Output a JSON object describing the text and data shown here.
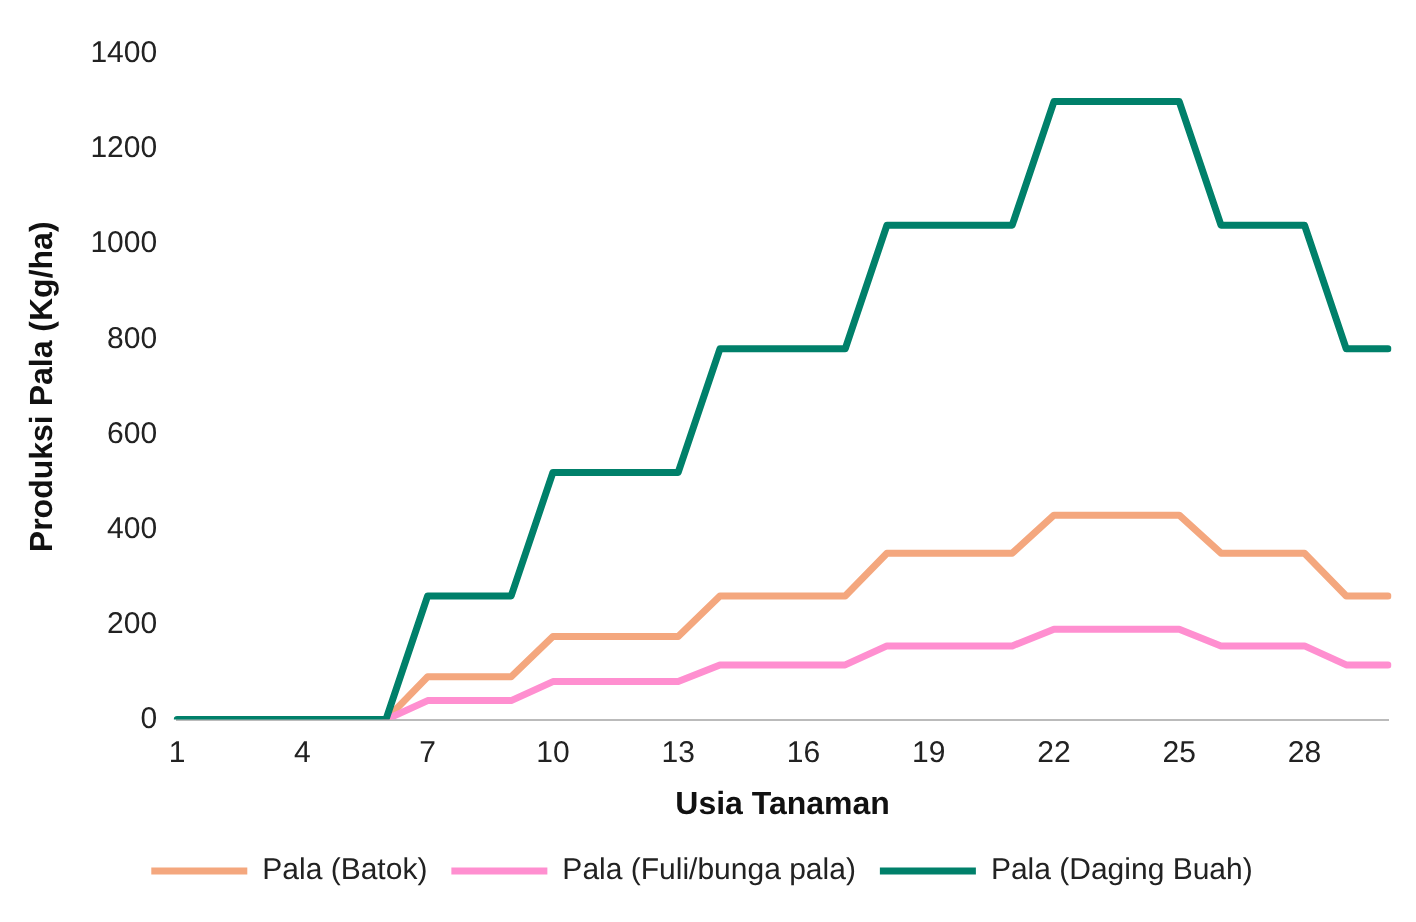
{
  "chart_data": {
    "type": "line",
    "xlabel": "Usia Tanaman",
    "ylabel": "Produksi Pala (Kg/ha)",
    "categories": [
      "1",
      null,
      null,
      "4",
      null,
      null,
      "7",
      null,
      null,
      "10",
      null,
      null,
      "13",
      null,
      null,
      "16",
      null,
      null,
      "19",
      null,
      null,
      "22",
      null,
      null,
      "25",
      null,
      null,
      "28",
      null,
      null
    ],
    "series": [
      {
        "name": "Pala (Batok)",
        "color": "#f4a77e",
        "values": [
          null,
          null,
          null,
          null,
          null,
          0,
          90,
          90,
          90,
          175,
          175,
          175,
          175,
          260,
          260,
          260,
          260,
          350,
          350,
          350,
          350,
          430,
          430,
          430,
          430,
          350,
          350,
          350,
          260,
          260
        ]
      },
      {
        "name": "Pala (Fuli/bunga pala)",
        "color": "#ff8fd0",
        "values": [
          null,
          null,
          null,
          null,
          null,
          0,
          40,
          40,
          40,
          80,
          80,
          80,
          80,
          115,
          115,
          115,
          115,
          155,
          155,
          155,
          155,
          190,
          190,
          190,
          190,
          155,
          155,
          155,
          115,
          115
        ]
      },
      {
        "name": "Pala (Daging Buah)",
        "color": "#00806a",
        "values": [
          0,
          0,
          0,
          0,
          0,
          0,
          260,
          260,
          260,
          520,
          520,
          520,
          520,
          780,
          780,
          780,
          780,
          1040,
          1040,
          1040,
          1040,
          1300,
          1300,
          1300,
          1300,
          1040,
          1040,
          1040,
          780,
          780
        ]
      }
    ],
    "ylim": [
      0,
      1400
    ],
    "yticks": [
      0,
      200,
      400,
      600,
      800,
      1000,
      1200,
      1400
    ],
    "grid": false,
    "legend": "bottom",
    "marker": "none",
    "line_style": "solid"
  }
}
